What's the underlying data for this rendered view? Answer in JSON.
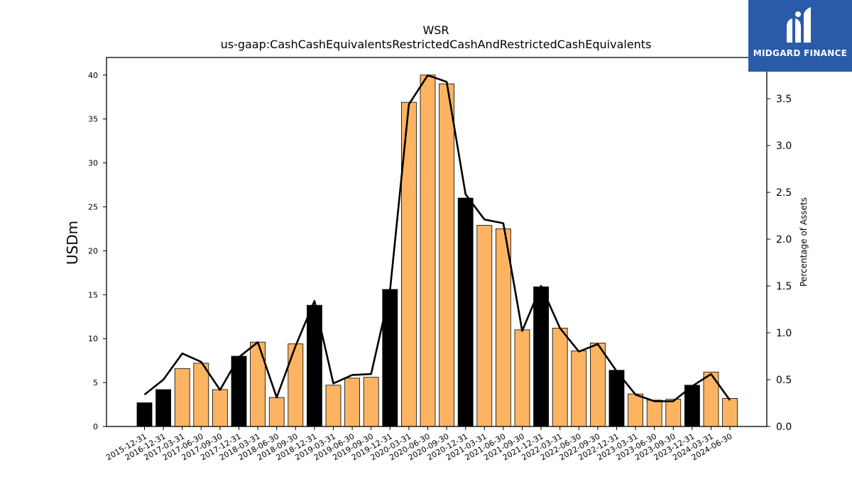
{
  "chart_data": {
    "type": "bar",
    "title": "WSR",
    "subtitle": "us-gaap:CashCashEquivalentsRestrictedCashAndRestrictedCashEquivalents",
    "ylabel": "USDm",
    "y2label": "Percentage of Assets",
    "ylim": [
      0,
      42
    ],
    "y2lim": [
      0,
      3.94
    ],
    "yticks": [
      0,
      5,
      10,
      15,
      20,
      25,
      30,
      35,
      40
    ],
    "y2ticks": [
      0.0,
      0.5,
      1.0,
      1.5,
      2.0,
      2.5,
      3.0,
      3.5
    ],
    "categories": [
      "2015-12-31",
      "2016-12-31",
      "2017-03-31",
      "2017-06-30",
      "2017-09-30",
      "2017-12-31",
      "2018-03-31",
      "2018-06-30",
      "2018-09-30",
      "2018-12-31",
      "2019-03-31",
      "2019-06-30",
      "2019-09-30",
      "2019-12-31",
      "2020-03-31",
      "2020-06-30",
      "2020-09-30",
      "2020-12-31",
      "2021-03-31",
      "2021-06-30",
      "2021-09-30",
      "2021-12-31",
      "2022-03-31",
      "2022-06-30",
      "2022-09-30",
      "2022-12-31",
      "2023-03-31",
      "2023-06-30",
      "2023-09-30",
      "2023-12-31",
      "2024-03-31",
      "2024-06-30"
    ],
    "series": [
      {
        "kind": "bar",
        "values": [
          2.7,
          4.2,
          6.6,
          7.2,
          4.2,
          8.0,
          9.6,
          3.3,
          9.4,
          13.8,
          4.7,
          5.5,
          5.6,
          15.6,
          36.9,
          40.0,
          39.0,
          26.0,
          22.9,
          22.5,
          11.0,
          15.9,
          11.2,
          8.6,
          9.5,
          6.4,
          3.7,
          3.0,
          3.1,
          4.7,
          6.2,
          3.2
        ]
      },
      {
        "kind": "line",
        "axis": "secondary",
        "values": [
          0.34,
          0.5,
          0.78,
          0.69,
          0.39,
          0.74,
          0.9,
          0.31,
          0.86,
          1.34,
          0.46,
          0.55,
          0.56,
          1.45,
          3.44,
          3.75,
          3.68,
          2.48,
          2.21,
          2.17,
          1.02,
          1.5,
          1.05,
          0.8,
          0.88,
          0.59,
          0.34,
          0.27,
          0.27,
          0.43,
          0.56,
          0.28
        ]
      }
    ],
    "bar_colors": {
      "highlight_dates": [
        "2015-12-31",
        "2016-12-31",
        "2017-12-31",
        "2018-12-31",
        "2019-12-31",
        "2020-12-31",
        "2021-12-31",
        "2022-12-31",
        "2023-12-31"
      ],
      "highlight": "#000000",
      "default": "#fdb462"
    },
    "line_color": "#000000"
  },
  "logo": {
    "text": "MIDGARD FINANCE",
    "background": "#2a5ba8"
  }
}
